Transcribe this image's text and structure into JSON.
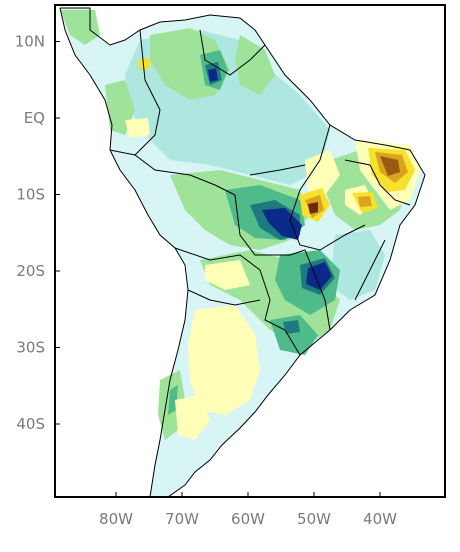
{
  "axes": {
    "y_ticks": [
      {
        "label": "10N",
        "lat": 10
      },
      {
        "label": "EQ",
        "lat": 0
      },
      {
        "label": "10S",
        "lat": -10
      },
      {
        "label": "20S",
        "lat": -20
      },
      {
        "label": "30S",
        "lat": -30
      },
      {
        "label": "40S",
        "lat": -40
      }
    ],
    "x_ticks": [
      {
        "label": "80W",
        "lon": -80
      },
      {
        "label": "70W",
        "lon": -70
      },
      {
        "label": "60W",
        "lon": -60
      },
      {
        "label": "50W",
        "lon": -50
      },
      {
        "label": "40W",
        "lon": -40
      }
    ]
  },
  "colors": {
    "light_cyan": "#d8f5f5",
    "cyan": "#aee6e0",
    "light_green": "#9fe29a",
    "green": "#4fbb8a",
    "teal": "#1f7a80",
    "navy": "#0a2a8a",
    "light_yellow": "#ffffb8",
    "yellow": "#f7e12b",
    "orange": "#d9a521",
    "brown": "#9b5a12",
    "dark_brown": "#6a2a05",
    "outline": "#000000",
    "tick_text": "#7a7a7a"
  }
}
